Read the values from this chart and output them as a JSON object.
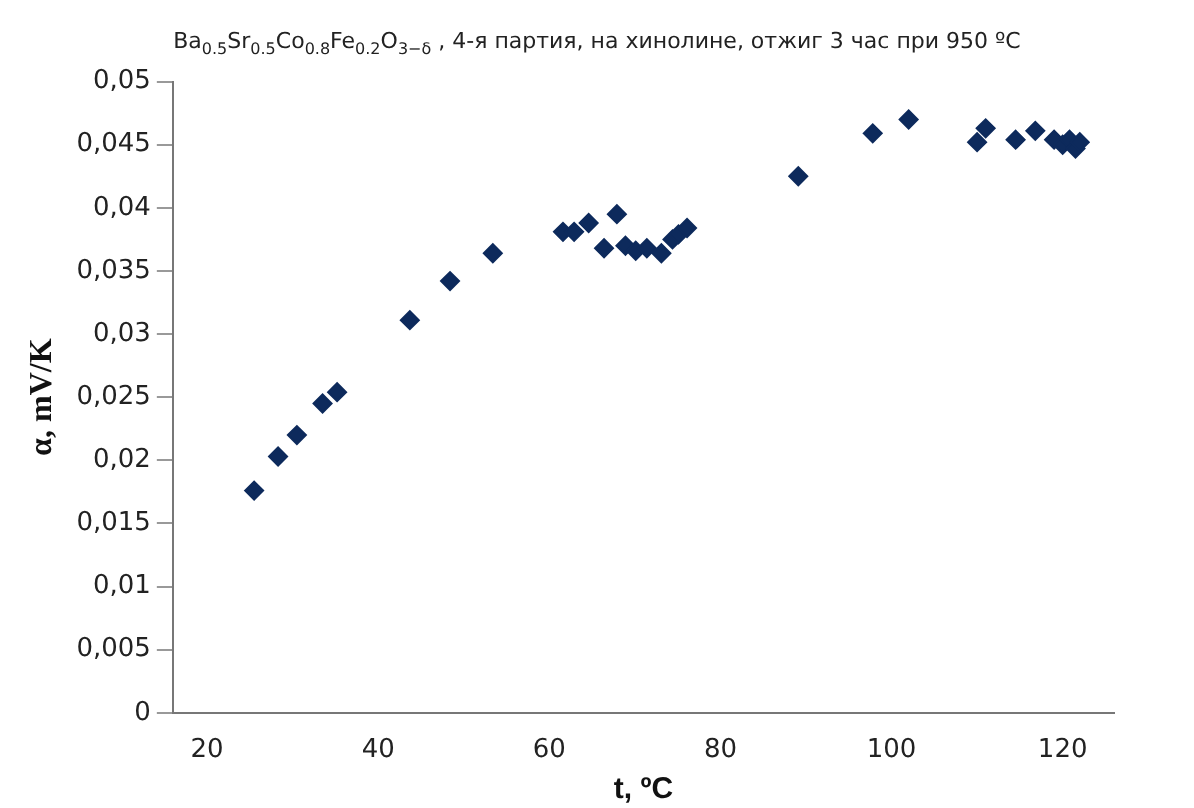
{
  "chart_data": {
    "type": "scatter",
    "title": "Ba$_{0.5}$Sr$_{0.5}$Co$_{0.8}$Fe$_{0.2}$O$_{3−δ}$ , 4-я партия, на хинолине, отжиг 3 час при 950 ºС",
    "xlabel": "t, ºC",
    "ylabel": "α, mV/K",
    "marker": "diamond",
    "grid": false,
    "legend": false,
    "xlim": [
      16,
      126
    ],
    "xticks": [
      20,
      40,
      60,
      80,
      100,
      120
    ],
    "ylim": [
      0,
      0.05
    ],
    "yticks": [
      {
        "value": 0,
        "label": "0"
      },
      {
        "value": 0.005,
        "label": "0,005"
      },
      {
        "value": 0.01,
        "label": "0,01"
      },
      {
        "value": 0.015,
        "label": "0,015"
      },
      {
        "value": 0.02,
        "label": "0,02"
      },
      {
        "value": 0.025,
        "label": "0,025"
      },
      {
        "value": 0.03,
        "label": "0,03"
      },
      {
        "value": 0.035,
        "label": "0,035"
      },
      {
        "value": 0.04,
        "label": "0,04"
      },
      {
        "value": 0.045,
        "label": "0,045"
      },
      {
        "value": 0.05,
        "label": "0,05"
      }
    ],
    "series": [
      {
        "color": "#0d2a5c",
        "x": [
          25.5,
          28.3,
          30.5,
          33.5,
          35.2,
          43.7,
          48.4,
          53.4,
          61.6,
          62.9,
          64.6,
          66.4,
          67.9,
          68.9,
          70.1,
          71.4,
          73.1,
          74.4,
          75.1,
          76.1,
          89.1,
          97.8,
          102.0,
          110.0,
          111.0,
          114.5,
          116.8,
          119.0,
          120.0,
          120.8,
          121.5,
          122.0
        ],
        "values": [
          0.0176,
          0.0203,
          0.022,
          0.0245,
          0.0254,
          0.0311,
          0.0342,
          0.0364,
          0.0381,
          0.0381,
          0.0388,
          0.0368,
          0.0395,
          0.037,
          0.0366,
          0.0368,
          0.0364,
          0.0375,
          0.0379,
          0.0384,
          0.0425,
          0.0459,
          0.047,
          0.0452,
          0.0463,
          0.0454,
          0.0461,
          0.0454,
          0.045,
          0.0454,
          0.0447,
          0.0452
        ]
      }
    ]
  }
}
